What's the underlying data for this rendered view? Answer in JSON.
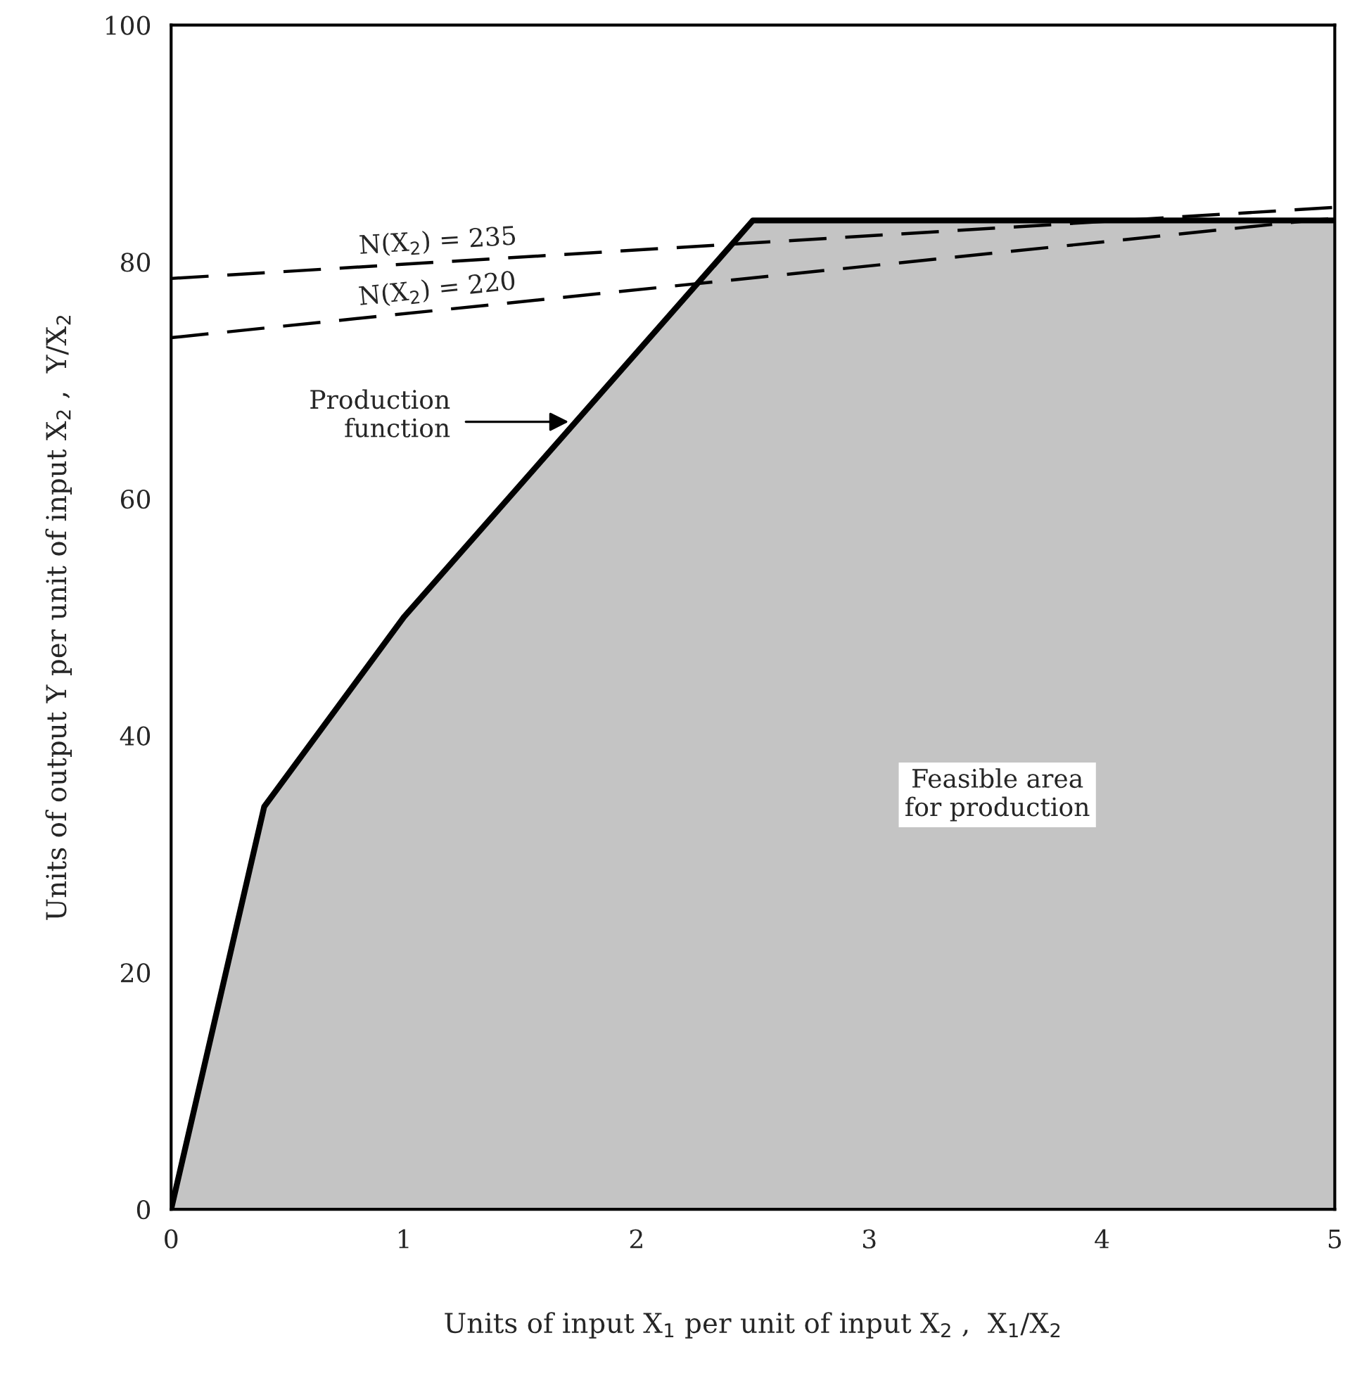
{
  "chart_data": {
    "type": "area",
    "xlabel": "Units of input X$_{1}$ per unit of input X$_{2}$ ,  X$_{1}$/X$_{2}$",
    "ylabel": "Units of output Y per unit of input X$_{2}$ ,  Y/X$_{2}$",
    "series": [
      {
        "color": "#c4c4c4",
        "x": [
          0,
          0.4,
          1,
          2.5,
          5
        ],
        "values": [
          0,
          34,
          50,
          83.5,
          83.5
        ]
      },
      {
        "type": "line",
        "name": "N(X$_{2}$) = 235",
        "color": "#000000",
        "line_style": "dashed",
        "x": [
          0,
          5
        ],
        "values": [
          78.6,
          84.6
        ]
      },
      {
        "type": "line",
        "name": "N(X$_{2}$) = 220",
        "color": "#000000",
        "line_style": "dashed",
        "x": [
          0,
          5
        ],
        "values": [
          73.6,
          83.7
        ]
      }
    ],
    "annotations": [
      "Production\nfunction",
      "Feasible area\nfor production"
    ],
    "xlim": [
      0,
      5
    ],
    "ylim": [
      0,
      100
    ],
    "xticks": [
      0,
      1,
      2,
      3,
      4,
      5
    ],
    "yticks": [
      0,
      20,
      40,
      60,
      80,
      100
    ],
    "grid": false,
    "legend": false
  }
}
